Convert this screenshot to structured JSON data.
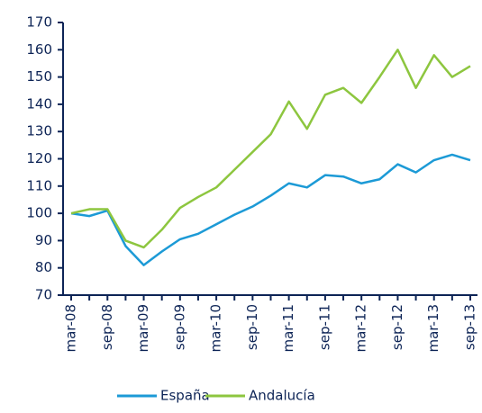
{
  "chart_data": {
    "type": "line",
    "categories": [
      "mar-08",
      null,
      "sep-08",
      null,
      "mar-09",
      null,
      "sep-09",
      null,
      "mar-10",
      null,
      "sep-10",
      null,
      "mar-11",
      null,
      "sep-11",
      null,
      "mar-12",
      null,
      "sep-12",
      null,
      "mar-13",
      null,
      "sep-13"
    ],
    "series": [
      {
        "name": "España",
        "color": "#1c9ad6",
        "values": [
          100,
          99,
          101,
          88,
          81,
          86,
          90.5,
          92.5,
          96,
          99.5,
          102.5,
          106.5,
          111,
          109.5,
          114,
          113.5,
          111,
          112.5,
          118,
          115,
          119.5,
          121.5,
          119.5
        ]
      },
      {
        "name": "Andalucía",
        "color": "#8dc63f",
        "values": [
          100,
          101.5,
          101.5,
          90,
          87.5,
          94,
          102,
          106,
          109.5,
          116,
          122.5,
          129,
          141,
          131,
          143.5,
          146,
          140.5,
          150,
          160,
          146,
          158,
          150,
          154
        ]
      }
    ],
    "ylim": [
      70,
      170
    ],
    "yticks": [
      70,
      80,
      90,
      100,
      110,
      120,
      130,
      140,
      150,
      160,
      170
    ],
    "grid": false,
    "legend": "bottom"
  }
}
